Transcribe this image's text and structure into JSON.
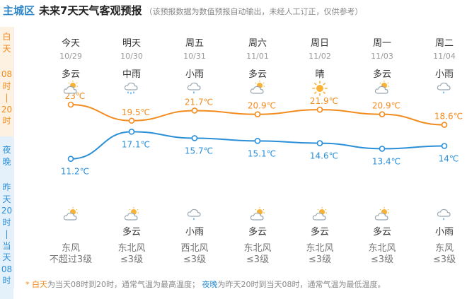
{
  "header": {
    "region": "主城区",
    "title": "未来7天天气客观预报",
    "note": "（该预报数据为数值预报自动输出，未经人工订正，仅供参考）"
  },
  "side": {
    "day_chars": [
      "白",
      "天"
    ],
    "day_range_chars": [
      "08",
      "时",
      "|",
      "20",
      "时"
    ],
    "night_chars": [
      "夜",
      "晚"
    ],
    "night_range_chars": [
      "昨",
      "天",
      "20",
      "时",
      "|",
      "当",
      "天",
      "08",
      "时"
    ]
  },
  "days": [
    {
      "name": "今天",
      "date": "10/29",
      "day_cond": "多云",
      "day_icon": "partly-cloudy-icon",
      "high": 23,
      "high_label": "23℃",
      "low": 11.2,
      "low_label": "11.2℃",
      "night_icon": "partly-cloudy-night-icon",
      "night_cond": "",
      "wind_dir": "东风",
      "wind_level": "不超过3级"
    },
    {
      "name": "明天",
      "date": "10/30",
      "day_cond": "中雨",
      "day_icon": "moderate-rain-icon",
      "high": 19.5,
      "high_label": "19.5℃",
      "low": 17.1,
      "low_label": "17.1℃",
      "night_icon": "partly-cloudy-night-icon",
      "night_cond": "多云",
      "wind_dir": "东北风",
      "wind_level": "≤3级"
    },
    {
      "name": "周五",
      "date": "10/31",
      "day_cond": "小雨",
      "day_icon": "light-rain-icon",
      "high": 21.7,
      "high_label": "21.7℃",
      "low": 15.7,
      "low_label": "15.7℃",
      "night_icon": "light-rain-icon",
      "night_cond": "小雨",
      "wind_dir": "西北风",
      "wind_level": "≤3级"
    },
    {
      "name": "周六",
      "date": "11/01",
      "day_cond": "多云",
      "day_icon": "partly-cloudy-icon",
      "high": 20.9,
      "high_label": "20.9℃",
      "low": 15.1,
      "low_label": "15.1℃",
      "night_icon": "partly-cloudy-night-icon",
      "night_cond": "多云",
      "wind_dir": "东北风",
      "wind_level": "≤3级"
    },
    {
      "name": "周日",
      "date": "11/02",
      "day_cond": "晴",
      "day_icon": "sunny-icon",
      "high": 21.9,
      "high_label": "21.9℃",
      "low": 14.6,
      "low_label": "14.6℃",
      "night_icon": "partly-cloudy-night-icon",
      "night_cond": "多云",
      "wind_dir": "东北风",
      "wind_level": "≤3级"
    },
    {
      "name": "周一",
      "date": "11/03",
      "day_cond": "多云",
      "day_icon": "partly-cloudy-icon",
      "high": 20.9,
      "high_label": "20.9℃",
      "low": 13.4,
      "low_label": "13.4℃",
      "night_icon": "partly-cloudy-night-icon",
      "night_cond": "多云",
      "wind_dir": "东北风",
      "wind_level": "≤3级"
    },
    {
      "name": "周二",
      "date": "11/04",
      "day_cond": "小雨",
      "day_icon": "light-rain-icon",
      "high": 18.6,
      "high_label": "18.6℃",
      "low": 14,
      "low_label": "14℃",
      "night_icon": "light-rain-icon",
      "night_cond": "小雨",
      "wind_dir": "东风",
      "wind_level": "≤3级"
    }
  ],
  "footnote": {
    "star": "*",
    "day_key": "白天",
    "day_text": "为当天08时到20时，通常气温为最高温度；",
    "night_key": "夜晚",
    "night_text": "为昨天20时到当天08时，通常气温为最低温度。"
  },
  "colors": {
    "high_line": "#f28c1f",
    "low_line": "#2b8fd8",
    "region": "#2f86c9"
  }
}
